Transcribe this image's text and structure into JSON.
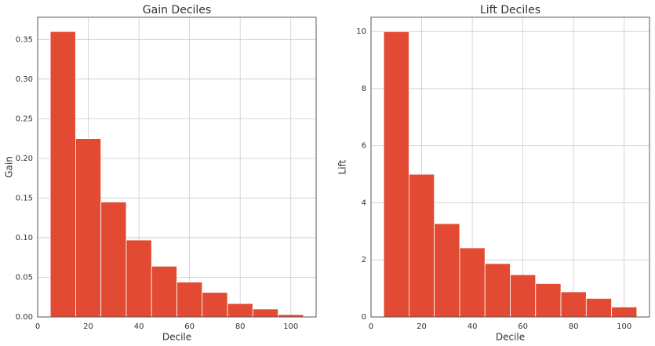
{
  "chart_data": [
    {
      "type": "histogram",
      "title": "Gain Deciles",
      "xlabel": "Decile",
      "ylabel": "Gain",
      "bins": [
        5,
        15,
        25,
        35,
        45,
        55,
        65,
        75,
        85,
        95,
        105
      ],
      "values": [
        0.36,
        0.225,
        0.145,
        0.097,
        0.064,
        0.044,
        0.031,
        0.017,
        0.01,
        0.003
      ],
      "color": "#e24a33",
      "xlim": [
        0,
        110
      ],
      "ylim": [
        0,
        0.378
      ],
      "xticks": [
        0,
        20,
        40,
        60,
        80,
        100
      ],
      "yticks": [
        {
          "value": 0,
          "label": "0.00"
        },
        {
          "value": 0.05,
          "label": "0.05"
        },
        {
          "value": 0.1,
          "label": "0.10"
        },
        {
          "value": 0.15,
          "label": "0.15"
        },
        {
          "value": 0.2,
          "label": "0.20"
        },
        {
          "value": 0.25,
          "label": "0.25"
        },
        {
          "value": 0.3,
          "label": "0.30"
        },
        {
          "value": 0.35,
          "label": "0.35"
        }
      ],
      "grid": true
    },
    {
      "type": "histogram",
      "title": "Lift Deciles",
      "xlabel": "Decile",
      "ylabel": "Lift",
      "bins": [
        5,
        15,
        25,
        35,
        45,
        55,
        65,
        75,
        85,
        95,
        105
      ],
      "values": [
        10,
        5,
        3.27,
        2.42,
        1.87,
        1.48,
        1.17,
        0.88,
        0.65,
        0.35
      ],
      "color": "#e24a33",
      "xlim": [
        0,
        110
      ],
      "ylim": [
        0,
        10.5
      ],
      "xticks": [
        0,
        20,
        40,
        60,
        80,
        100
      ],
      "yticks": [
        0,
        2,
        4,
        6,
        8,
        10
      ],
      "grid": true
    }
  ]
}
